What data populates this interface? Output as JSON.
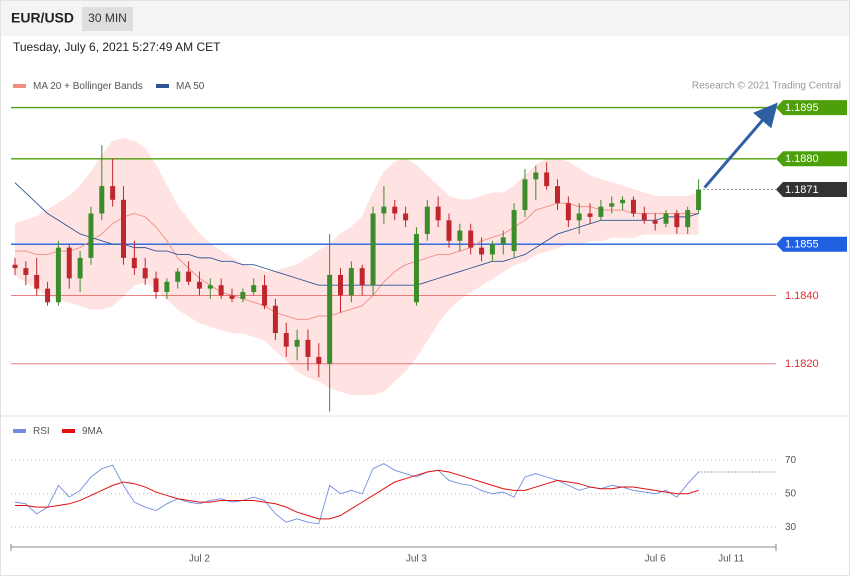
{
  "chart_data": {
    "type": "candlestick",
    "title": "EUR/USD",
    "subtitle": "30 MIN",
    "timestamp": "Tuesday, July 6, 2021 5:27:49 AM CET",
    "credit": "Research © 2021 Trading Central",
    "categories": [
      null,
      null,
      null,
      null,
      null,
      null,
      null,
      null,
      null,
      null,
      null,
      null,
      null,
      null,
      null,
      null,
      null,
      "Jul 2",
      null,
      null,
      null,
      null,
      null,
      null,
      null,
      null,
      null,
      null,
      null,
      null,
      null,
      null,
      null,
      null,
      null,
      null,
      null,
      "Jul 3",
      null,
      null,
      null,
      null,
      null,
      null,
      null,
      null,
      null,
      null,
      null,
      null,
      null,
      null,
      null,
      null,
      null,
      null,
      null,
      null,
      null,
      "Jul 6",
      null,
      null,
      null,
      null,
      null,
      null,
      "Jul 11",
      null,
      null,
      null,
      null
    ],
    "ylim": [
      1.1805,
      1.1906
    ],
    "up_color": "#3b8c2a",
    "down_color": "#c0262d",
    "band_color": "#ffe3e3",
    "arrow_color": "#2f5fa3",
    "ohlc": [
      [
        1.1849,
        1.1851,
        1.1846,
        1.1848
      ],
      [
        1.1848,
        1.185,
        1.1843,
        1.1846
      ],
      [
        1.1846,
        1.1851,
        1.184,
        1.1842
      ],
      [
        1.1842,
        1.1844,
        1.1837,
        1.1838
      ],
      [
        1.1838,
        1.1856,
        1.1837,
        1.1854
      ],
      [
        1.1854,
        1.1855,
        1.1842,
        1.1845
      ],
      [
        1.1845,
        1.1853,
        1.1841,
        1.1851
      ],
      [
        1.1851,
        1.1866,
        1.1849,
        1.1864
      ],
      [
        1.1864,
        1.1884,
        1.1862,
        1.1872
      ],
      [
        1.1872,
        1.188,
        1.1866,
        1.1868
      ],
      [
        1.1868,
        1.1872,
        1.1849,
        1.1851
      ],
      [
        1.1851,
        1.1856,
        1.1846,
        1.1848
      ],
      [
        1.1848,
        1.1851,
        1.1843,
        1.1845
      ],
      [
        1.1845,
        1.1847,
        1.1839,
        1.1841
      ],
      [
        1.1841,
        1.1845,
        1.1839,
        1.1844
      ],
      [
        1.1844,
        1.1848,
        1.1842,
        1.1847
      ],
      [
        1.1847,
        1.185,
        1.1843,
        1.1844
      ],
      [
        1.1844,
        1.1847,
        1.184,
        1.1842
      ],
      [
        1.1842,
        1.1845,
        1.1839,
        1.1843
      ],
      [
        1.1843,
        1.1845,
        1.1839,
        1.184
      ],
      [
        1.184,
        1.1842,
        1.1838,
        1.1839
      ],
      [
        1.1839,
        1.1842,
        1.1838,
        1.1841
      ],
      [
        1.1841,
        1.1845,
        1.184,
        1.1843
      ],
      [
        1.1843,
        1.1846,
        1.1836,
        1.1837
      ],
      [
        1.1837,
        1.1839,
        1.1827,
        1.1829
      ],
      [
        1.1829,
        1.1832,
        1.1822,
        1.1825
      ],
      [
        1.1825,
        1.183,
        1.1821,
        1.1827
      ],
      [
        1.1827,
        1.183,
        1.1818,
        1.1822
      ],
      [
        1.1822,
        1.1826,
        1.1816,
        1.182
      ],
      [
        1.182,
        1.1858,
        1.1806,
        1.1846
      ],
      [
        1.1846,
        1.1848,
        1.1835,
        1.184
      ],
      [
        1.184,
        1.185,
        1.1838,
        1.1848
      ],
      [
        1.1848,
        1.1849,
        1.184,
        1.1843
      ],
      [
        1.1843,
        1.1866,
        1.184,
        1.1864
      ],
      [
        1.1864,
        1.1872,
        1.1861,
        1.1866
      ],
      [
        1.1866,
        1.1868,
        1.1862,
        1.1864
      ],
      [
        1.1864,
        1.1866,
        1.186,
        1.1862
      ],
      [
        1.1838,
        1.186,
        1.1837,
        1.1858
      ],
      [
        1.1858,
        1.1868,
        1.1856,
        1.1866
      ],
      [
        1.1866,
        1.1869,
        1.186,
        1.1862
      ],
      [
        1.1862,
        1.1864,
        1.1854,
        1.1856
      ],
      [
        1.1856,
        1.1861,
        1.1853,
        1.1859
      ],
      [
        1.1859,
        1.1861,
        1.1852,
        1.1854
      ],
      [
        1.1854,
        1.1857,
        1.185,
        1.1852
      ],
      [
        1.1852,
        1.1856,
        1.185,
        1.1855
      ],
      [
        1.1855,
        1.1859,
        1.1852,
        1.1857
      ],
      [
        1.1853,
        1.1867,
        1.1851,
        1.1865
      ],
      [
        1.1865,
        1.1877,
        1.1863,
        1.1874
      ],
      [
        1.1874,
        1.1878,
        1.1868,
        1.1876
      ],
      [
        1.1876,
        1.1879,
        1.1871,
        1.1872
      ],
      [
        1.1872,
        1.1874,
        1.1865,
        1.1867
      ],
      [
        1.1867,
        1.1869,
        1.186,
        1.1862
      ],
      [
        1.1862,
        1.1867,
        1.1858,
        1.1864
      ],
      [
        1.1864,
        1.1867,
        1.1861,
        1.1863
      ],
      [
        1.1863,
        1.1868,
        1.1862,
        1.1866
      ],
      [
        1.1866,
        1.1869,
        1.1864,
        1.1867
      ],
      [
        1.1867,
        1.1869,
        1.1865,
        1.1868
      ],
      [
        1.1868,
        1.1869,
        1.1863,
        1.1864
      ],
      [
        1.1864,
        1.1866,
        1.1861,
        1.1862
      ],
      [
        1.1862,
        1.1864,
        1.1859,
        1.1861
      ],
      [
        1.1861,
        1.1865,
        1.186,
        1.1864
      ],
      [
        1.1864,
        1.1865,
        1.1858,
        1.186
      ],
      [
        1.186,
        1.1866,
        1.1858,
        1.1865
      ],
      [
        1.1865,
        1.1874,
        1.1864,
        1.1871
      ],
      null,
      null,
      null,
      null,
      null,
      null,
      null
    ],
    "series": [
      {
        "name": "MA 20 + Bollinger Bands",
        "color": "#f28b82",
        "values": [
          1.1853,
          1.1853,
          1.1852,
          1.1852,
          1.1853,
          1.1853,
          1.1854,
          1.1856,
          1.1858,
          1.1861,
          1.1863,
          1.1864,
          1.1863,
          1.186,
          1.1856,
          1.1851,
          1.1848,
          1.1845,
          1.1843,
          1.1841,
          1.184,
          1.1839,
          1.1838,
          1.1837,
          1.1835,
          1.1834,
          1.1833,
          1.1833,
          1.1834,
          1.1834,
          1.1835,
          1.1836,
          1.1837,
          1.184,
          1.1844,
          1.1847,
          1.1849,
          1.185,
          1.1851,
          1.1852,
          1.1852,
          1.1853,
          1.1854,
          1.1856,
          1.1857,
          1.1858,
          1.186,
          1.1862,
          1.1865,
          1.1866,
          1.1867,
          1.1867,
          1.1866,
          1.1866,
          1.1865,
          1.1865,
          1.1865,
          1.1864,
          1.1864,
          1.1864,
          1.1864,
          1.1864,
          1.1864,
          1.1864,
          null,
          null,
          null,
          null,
          null,
          null,
          null
        ],
        "upper": [
          1.1861,
          1.1862,
          1.1863,
          1.1865,
          1.1867,
          1.1869,
          1.1872,
          1.1876,
          1.1881,
          1.1885,
          1.1886,
          1.1885,
          1.1883,
          1.1878,
          1.1872,
          1.1866,
          1.1862,
          1.1858,
          1.1855,
          1.1853,
          1.1851,
          1.1849,
          1.1848,
          1.1847,
          1.1847,
          1.1848,
          1.1849,
          1.1851,
          1.1853,
          1.1855,
          1.1858,
          1.186,
          1.1863,
          1.187,
          1.1876,
          1.1879,
          1.188,
          1.1878,
          1.1875,
          1.1872,
          1.1869,
          1.1868,
          1.1868,
          1.1869,
          1.187,
          1.187,
          1.1872,
          1.1875,
          1.1878,
          1.188,
          1.188,
          1.1879,
          1.1877,
          1.1875,
          1.1874,
          1.1873,
          1.1872,
          1.1871,
          1.187,
          1.1869,
          1.1869,
          1.1869,
          1.1869,
          1.187,
          null,
          null,
          null,
          null,
          null,
          null,
          null
        ],
        "lower": [
          1.1846,
          1.1844,
          1.1842,
          1.184,
          1.1839,
          1.1838,
          1.1837,
          1.1836,
          1.1836,
          1.1837,
          1.184,
          1.1843,
          1.1844,
          1.1842,
          1.1839,
          1.1836,
          1.1834,
          1.1832,
          1.1831,
          1.183,
          1.1829,
          1.1829,
          1.1828,
          1.1827,
          1.1824,
          1.1821,
          1.1818,
          1.1816,
          1.1815,
          1.1813,
          1.1812,
          1.1811,
          1.1811,
          1.1811,
          1.1812,
          1.1815,
          1.1818,
          1.1822,
          1.1827,
          1.1832,
          1.1836,
          1.1839,
          1.1841,
          1.1843,
          1.1845,
          1.1847,
          1.1849,
          1.185,
          1.1852,
          1.1853,
          1.1854,
          1.1855,
          1.1855,
          1.1856,
          1.1856,
          1.1857,
          1.1857,
          1.1857,
          1.1858,
          1.1858,
          1.1858,
          1.1858,
          1.1858,
          1.1858,
          null,
          null,
          null,
          null,
          null,
          null,
          null
        ]
      },
      {
        "name": "MA 50",
        "color": "#2f5597",
        "values": [
          1.1873,
          1.187,
          1.1867,
          1.1864,
          1.1862,
          1.186,
          1.1858,
          1.1857,
          1.1856,
          1.1855,
          1.1855,
          1.1854,
          1.1854,
          1.1853,
          1.1853,
          1.1852,
          1.1852,
          1.1851,
          1.1851,
          1.185,
          1.185,
          1.1849,
          1.1849,
          1.1848,
          1.1847,
          1.1846,
          1.1845,
          1.1844,
          1.1843,
          1.1843,
          1.1843,
          1.1843,
          1.1843,
          1.1843,
          1.1843,
          1.1843,
          1.1843,
          1.1843,
          1.1844,
          1.1845,
          1.1846,
          1.1847,
          1.1848,
          1.1849,
          1.185,
          1.185,
          1.1851,
          1.1852,
          1.1854,
          1.1856,
          1.1858,
          1.1859,
          1.186,
          1.1861,
          1.1862,
          1.1862,
          1.1862,
          1.1862,
          1.1862,
          1.1862,
          1.1863,
          1.1863,
          1.1863,
          1.1864,
          null,
          null,
          null,
          null,
          null,
          null,
          null
        ]
      }
    ],
    "levels": [
      {
        "value": 1.1895,
        "label": "1.1895",
        "color": "#4ea00a",
        "boxed": true,
        "line": "solid"
      },
      {
        "value": 1.188,
        "label": "1.1880",
        "color": "#4ea00a",
        "boxed": true,
        "line": "solid"
      },
      {
        "value": 1.1871,
        "label": "1.1871",
        "color": "#333333",
        "boxed": true,
        "line": "dotted"
      },
      {
        "value": 1.1855,
        "label": "1.1855",
        "color": "#1f5fe0",
        "boxed": true,
        "line": "solid"
      },
      {
        "value": 1.184,
        "label": "1.1840",
        "color": "#e03030",
        "boxed": false,
        "line": "solid"
      },
      {
        "value": 1.182,
        "label": "1.1820",
        "color": "#e03030",
        "boxed": false,
        "line": "solid"
      }
    ],
    "rsi": {
      "ylim": [
        20,
        80
      ],
      "yticks": [
        30,
        50,
        70
      ],
      "series": [
        {
          "name": "RSI",
          "color": "#6f8ee0",
          "values": [
            45,
            44,
            38,
            42,
            55,
            48,
            52,
            60,
            65,
            67,
            55,
            45,
            42,
            40,
            44,
            47,
            45,
            44,
            46,
            47,
            45,
            46,
            48,
            46,
            38,
            33,
            35,
            33,
            32,
            55,
            50,
            52,
            50,
            65,
            68,
            64,
            62,
            60,
            63,
            64,
            58,
            56,
            55,
            52,
            50,
            51,
            48,
            60,
            62,
            60,
            58,
            55,
            52,
            54,
            53,
            55,
            54,
            52,
            51,
            50,
            52,
            48,
            56,
            63,
            null,
            null,
            null,
            null,
            null,
            null,
            null
          ]
        },
        {
          "name": "9MA",
          "color": "#e01010",
          "values": [
            43,
            43,
            42,
            42,
            43,
            44,
            46,
            49,
            52,
            55,
            57,
            56,
            54,
            51,
            49,
            47,
            46,
            45,
            45,
            46,
            46,
            46,
            46,
            45,
            44,
            42,
            39,
            37,
            35,
            35,
            37,
            41,
            45,
            49,
            53,
            57,
            59,
            61,
            63,
            64,
            63,
            61,
            59,
            57,
            55,
            53,
            52,
            52,
            54,
            56,
            58,
            57,
            56,
            54,
            53,
            53,
            54,
            54,
            53,
            52,
            51,
            50,
            50,
            52,
            null,
            null,
            null,
            null,
            null,
            null,
            null
          ]
        }
      ]
    }
  }
}
